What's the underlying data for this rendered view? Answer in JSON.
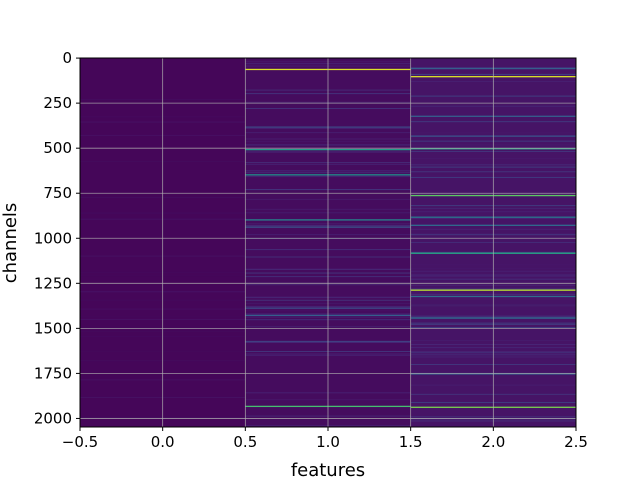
{
  "chart_data": {
    "type": "heatmap",
    "title": "",
    "xlabel": "features",
    "ylabel": "channels",
    "xlim": [
      -0.5,
      2.5
    ],
    "ylim": [
      2047.5,
      -0.5
    ],
    "y_inverted": true,
    "rows": 2048,
    "columns": [
      0,
      1,
      2
    ],
    "colormap": "viridis",
    "grid": true,
    "background_color": "#440154",
    "x_ticks": [
      -0.5,
      0.0,
      0.5,
      1.0,
      1.5,
      2.0,
      2.5
    ],
    "x_tick_labels": [
      "−0.5",
      "0.0",
      "0.5",
      "1.0",
      "1.5",
      "2.0",
      "2.5"
    ],
    "y_ticks": [
      0,
      250,
      500,
      750,
      1000,
      1250,
      1500,
      1750,
      2000
    ],
    "y_tick_labels": [
      "0",
      "250",
      "500",
      "750",
      "1000",
      "1250",
      "1500",
      "1750",
      "2000"
    ],
    "columns_data": [
      {
        "column": 0,
        "base_value": 0.02,
        "highlights": []
      },
      {
        "column": 1,
        "base_value": 0.04,
        "highlights": [
          {
            "channel": 60,
            "value": 0.95
          },
          {
            "channel": 380,
            "value": 0.22
          },
          {
            "channel": 505,
            "value": 0.55
          },
          {
            "channel": 645,
            "value": 0.5
          },
          {
            "channel": 895,
            "value": 0.45
          },
          {
            "channel": 935,
            "value": 0.25
          },
          {
            "channel": 1385,
            "value": 0.22
          },
          {
            "channel": 1425,
            "value": 0.3
          },
          {
            "channel": 1570,
            "value": 0.2
          },
          {
            "channel": 1930,
            "value": 0.7
          }
        ]
      },
      {
        "column": 2,
        "base_value": 0.07,
        "highlights": [
          {
            "channel": 55,
            "value": 0.3
          },
          {
            "channel": 100,
            "value": 0.95
          },
          {
            "channel": 320,
            "value": 0.3
          },
          {
            "channel": 430,
            "value": 0.25
          },
          {
            "channel": 500,
            "value": 0.6
          },
          {
            "channel": 760,
            "value": 0.75
          },
          {
            "channel": 880,
            "value": 0.4
          },
          {
            "channel": 925,
            "value": 0.35
          },
          {
            "channel": 1080,
            "value": 0.6
          },
          {
            "channel": 1285,
            "value": 0.9
          },
          {
            "channel": 1320,
            "value": 0.35
          },
          {
            "channel": 1440,
            "value": 0.35
          },
          {
            "channel": 1750,
            "value": 0.3
          },
          {
            "channel": 1935,
            "value": 0.8
          }
        ]
      }
    ]
  }
}
